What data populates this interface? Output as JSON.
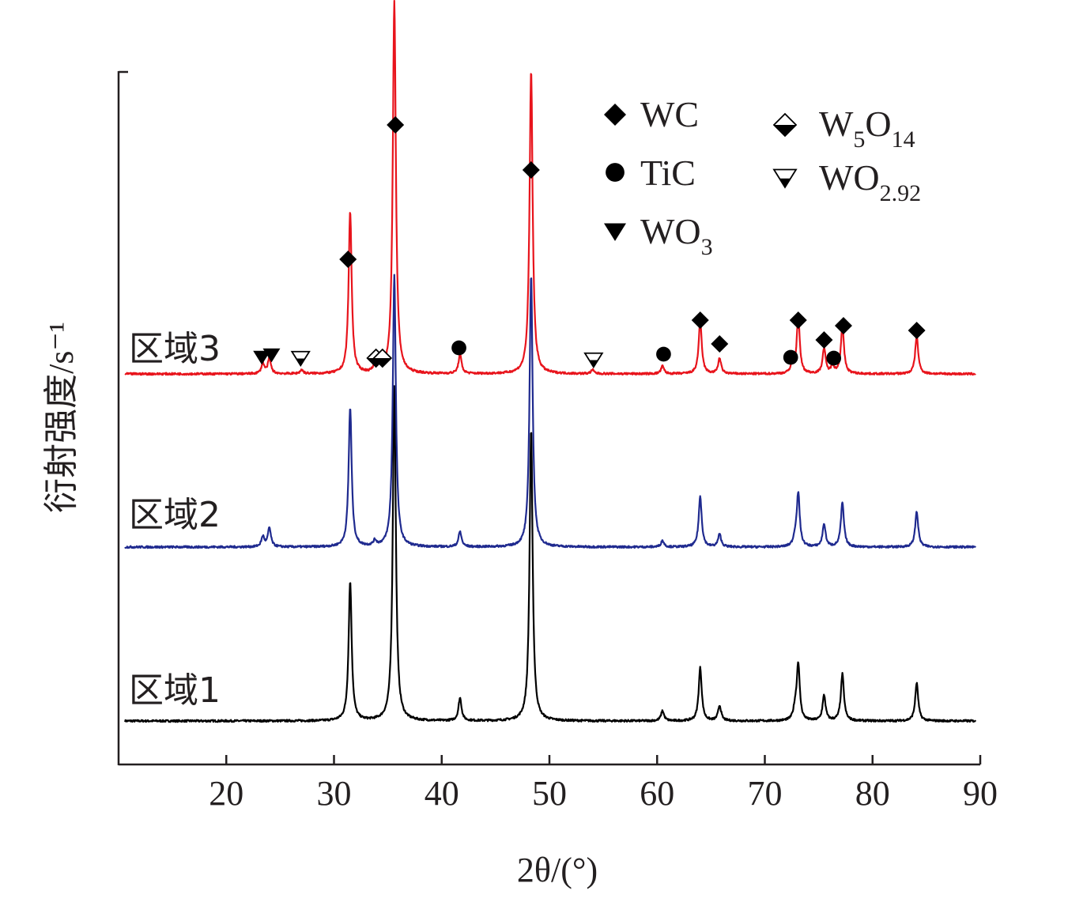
{
  "chart_data": {
    "type": "line",
    "title": "",
    "xlabel": "2θ/(°)",
    "ylabel": "衍射强度/s⁻¹",
    "xlim": [
      10,
      90
    ],
    "xticks": [
      20,
      30,
      40,
      50,
      60,
      70,
      80,
      90
    ],
    "y_ticks_shown": false,
    "grid": false,
    "legend_position": "top-right",
    "legend": [
      {
        "name": "WC",
        "base": "WC",
        "sub": "",
        "marker": "filled-diamond"
      },
      {
        "name": "TiC",
        "base": "TiC",
        "sub": "",
        "marker": "filled-circle"
      },
      {
        "name": "WO3",
        "base": "WO",
        "sub": "3",
        "marker": "filled-down-triangle"
      },
      {
        "name": "W5O14",
        "base": "W",
        "sub": "5",
        "base2": "O",
        "sub2": "14",
        "marker": "half-filled-diamond"
      },
      {
        "name": "WO2.92",
        "base": "WO",
        "sub": "2.92",
        "marker": "half-filled-down-triangle"
      }
    ],
    "series": [
      {
        "name": "区域1",
        "color": "#000000",
        "peaks": [
          [
            31.5,
            110
          ],
          [
            35.6,
            265
          ],
          [
            41.7,
            18
          ],
          [
            48.3,
            230
          ],
          [
            60.5,
            8
          ],
          [
            64.0,
            42
          ],
          [
            65.8,
            12
          ],
          [
            72.8,
            8
          ],
          [
            73.1,
            45
          ],
          [
            75.5,
            20
          ],
          [
            77.2,
            37
          ],
          [
            84.1,
            30
          ]
        ]
      },
      {
        "name": "区域2",
        "color": "#1f2a8f",
        "peaks": [
          [
            23.4,
            8
          ],
          [
            24.0,
            15
          ],
          [
            31.5,
            110
          ],
          [
            33.8,
            4
          ],
          [
            35.6,
            215
          ],
          [
            41.7,
            12
          ],
          [
            48.3,
            215
          ],
          [
            60.5,
            5
          ],
          [
            64.0,
            40
          ],
          [
            65.8,
            10
          ],
          [
            72.8,
            6
          ],
          [
            73.1,
            42
          ],
          [
            75.5,
            18
          ],
          [
            77.2,
            35
          ],
          [
            84.1,
            28
          ]
        ]
      },
      {
        "name": "区域3",
        "color": "#e8141c",
        "peaks": [
          [
            23.4,
            8
          ],
          [
            24.0,
            12
          ],
          [
            27.0,
            3
          ],
          [
            31.5,
            128
          ],
          [
            33.8,
            6
          ],
          [
            34.3,
            6
          ],
          [
            35.6,
            295
          ],
          [
            41.7,
            15
          ],
          [
            48.3,
            240
          ],
          [
            54.0,
            3
          ],
          [
            60.5,
            6
          ],
          [
            64.0,
            42
          ],
          [
            65.8,
            12
          ],
          [
            72.5,
            6
          ],
          [
            73.1,
            45
          ],
          [
            75.5,
            20
          ],
          [
            76.3,
            6
          ],
          [
            77.2,
            38
          ],
          [
            84.1,
            30
          ]
        ]
      }
    ],
    "annotations": [
      {
        "phase": "WC",
        "marker": "filled-diamond",
        "x": 31.3,
        "y": 328
      },
      {
        "phase": "WC",
        "marker": "filled-diamond",
        "x": 35.7,
        "y": 158
      },
      {
        "phase": "WC",
        "marker": "filled-diamond",
        "x": 48.3,
        "y": 215
      },
      {
        "phase": "WC",
        "marker": "filled-diamond",
        "x": 64.0,
        "y": 405
      },
      {
        "phase": "WC",
        "marker": "filled-diamond",
        "x": 65.8,
        "y": 435
      },
      {
        "phase": "WC",
        "marker": "filled-diamond",
        "x": 73.1,
        "y": 405
      },
      {
        "phase": "WC",
        "marker": "filled-diamond",
        "x": 75.5,
        "y": 430
      },
      {
        "phase": "WC",
        "marker": "filled-diamond",
        "x": 77.3,
        "y": 412
      },
      {
        "phase": "WC",
        "marker": "filled-diamond",
        "x": 84.1,
        "y": 418
      },
      {
        "phase": "TiC",
        "marker": "filled-circle",
        "x": 41.6,
        "y": 440
      },
      {
        "phase": "TiC",
        "marker": "filled-circle",
        "x": 60.6,
        "y": 448
      },
      {
        "phase": "TiC",
        "marker": "filled-circle",
        "x": 72.4,
        "y": 452
      },
      {
        "phase": "TiC",
        "marker": "filled-circle",
        "x": 76.4,
        "y": 453
      },
      {
        "phase": "WO3",
        "marker": "filled-down-triangle",
        "x": 23.3,
        "y": 452
      },
      {
        "phase": "WO3",
        "marker": "filled-down-triangle",
        "x": 24.2,
        "y": 449
      },
      {
        "phase": "WO2.92",
        "marker": "half-filled-down-triangle",
        "x": 26.9,
        "y": 453
      },
      {
        "phase": "WO2.92",
        "marker": "half-filled-down-triangle",
        "x": 54.1,
        "y": 455
      },
      {
        "phase": "W5O14",
        "marker": "half-filled-diamond",
        "x": 33.9,
        "y": 453
      },
      {
        "phase": "W5O14",
        "marker": "half-filled-diamond",
        "x": 34.5,
        "y": 453
      }
    ]
  }
}
